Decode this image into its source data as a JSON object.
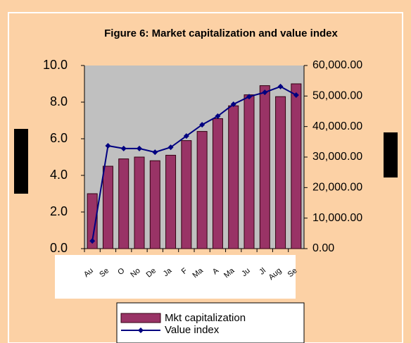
{
  "chart_data": {
    "type": "bar-line",
    "title": "Figure 6: Market capitalization and value index",
    "categories": [
      "Au",
      "Se",
      "O",
      "No",
      "De",
      "Ja",
      "F",
      "Ma",
      "A",
      "Ma",
      "Ju",
      "Jl",
      "Aug",
      "Se"
    ],
    "series": [
      {
        "name": "Mkt capitalization",
        "type": "bar",
        "color": "#993366",
        "values": [
          3.0,
          4.5,
          4.9,
          5.0,
          4.8,
          5.1,
          5.9,
          6.4,
          7.1,
          7.8,
          8.4,
          8.9,
          8.3,
          9.0
        ]
      },
      {
        "name": "Value index",
        "type": "line",
        "axis": "y2",
        "color": "#000080",
        "values": [
          2500,
          33700,
          32800,
          32800,
          31600,
          33200,
          36900,
          40600,
          43400,
          47300,
          49800,
          51200,
          53100,
          50300
        ]
      }
    ],
    "ylim": [
      0,
      10
    ],
    "yticks": [
      {
        "value": 0,
        "label": "0.0"
      },
      {
        "value": 2,
        "label": "2.0"
      },
      {
        "value": 4,
        "label": "4.0"
      },
      {
        "value": 6,
        "label": "6.0"
      },
      {
        "value": 8,
        "label": "8.0"
      },
      {
        "value": 10,
        "label": "10.0"
      }
    ],
    "y2lim": [
      0,
      60000
    ],
    "y2ticks": [
      {
        "value": 0,
        "label": "0.00"
      },
      {
        "value": 10000,
        "label": "10,000.00"
      },
      {
        "value": 20000,
        "label": "20,000.00"
      },
      {
        "value": 30000,
        "label": "30,000.00"
      },
      {
        "value": 40000,
        "label": "40,000.00"
      },
      {
        "value": 50000,
        "label": "50,000.00"
      },
      {
        "value": 60000,
        "label": "60,000.00"
      }
    ],
    "grid": false
  }
}
